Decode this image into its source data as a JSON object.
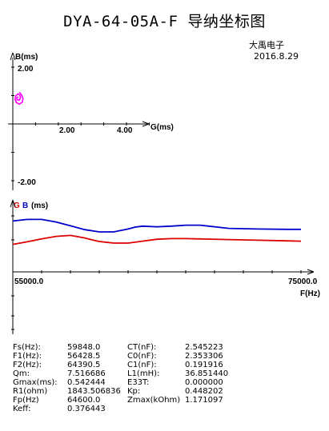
{
  "header": {
    "title": "DYA-64-05A-F 导纳坐标图",
    "company": "大禹电子",
    "date": "2016.8.29"
  },
  "chart_data": [
    {
      "type": "scatter",
      "title": "",
      "xlabel": "G(ms)",
      "ylabel": "B(ms)",
      "x_ticks": [
        "2.00",
        "4.00"
      ],
      "y_ticks": [
        "2.00",
        "-2.00"
      ],
      "xlim": [
        0,
        4.8
      ],
      "ylim": [
        -2.4,
        2.4
      ],
      "series": [
        {
          "color": "#ff00ff",
          "points": [
            [
              0.23,
              1.12
            ],
            [
              0.31,
              1.02
            ],
            [
              0.36,
              0.89
            ],
            [
              0.33,
              0.76
            ],
            [
              0.23,
              0.7
            ],
            [
              0.13,
              0.75
            ],
            [
              0.08,
              0.87
            ],
            [
              0.1,
              0.99
            ],
            [
              0.18,
              1.06
            ],
            [
              0.25,
              1.01
            ],
            [
              0.27,
              0.91
            ],
            [
              0.22,
              0.83
            ],
            [
              0.15,
              0.85
            ],
            [
              0.14,
              0.92
            ],
            [
              0.19,
              0.96
            ]
          ]
        }
      ]
    },
    {
      "type": "line",
      "title": "",
      "legend_g": "G",
      "legend_b": "B",
      "ylabel": "(ms)",
      "xlabel": "F(Hz)",
      "x_ticks": [
        "55000.0",
        "75000.0"
      ],
      "xlim": [
        55000,
        75000
      ],
      "ylim": [
        0,
        10
      ],
      "series": [
        {
          "color": "#0000cc",
          "x": [
            55000,
            56000,
            57000,
            58000,
            59000,
            60000,
            61000,
            62000,
            63000,
            63500,
            64000,
            65000,
            66000,
            67000,
            68000,
            69000,
            70000,
            72000,
            74000,
            75000
          ],
          "y": [
            7.95,
            8.2,
            8.2,
            7.8,
            7.2,
            6.6,
            6.25,
            6.25,
            6.7,
            7.0,
            7.15,
            7.05,
            7.15,
            7.3,
            7.3,
            7.05,
            6.8,
            6.7,
            6.65,
            6.65
          ]
        },
        {
          "color": "#dd0000",
          "x": [
            55000,
            56000,
            57000,
            58000,
            59000,
            60000,
            60500,
            61000,
            62000,
            63000,
            64000,
            65000,
            66000,
            67000,
            68000,
            70000,
            72000,
            74000,
            75000
          ],
          "y": [
            4.3,
            4.7,
            5.15,
            5.55,
            5.7,
            5.3,
            5.0,
            4.75,
            4.5,
            4.5,
            4.8,
            5.1,
            5.2,
            5.2,
            5.15,
            5.05,
            4.95,
            4.85,
            4.8
          ]
        }
      ]
    }
  ],
  "params": [
    [
      "Fs(Hz):",
      "59848.0",
      "CT(nF):",
      "2.545223"
    ],
    [
      "F1(Hz):",
      "56428.5",
      "C0(nF):",
      "2.353306"
    ],
    [
      "F2(Hz):",
      "64390.5",
      "C1(nF):",
      "0.191916"
    ],
    [
      "Qm:",
      "7.516686",
      "L1(mH):",
      "36.851440"
    ],
    [
      "Gmax(ms):",
      "0.542444",
      "E33T:",
      "0.000000"
    ],
    [
      "R1(ohm)",
      "1843.506836",
      "Kp:",
      "0.448202"
    ],
    [
      "Fp(Hz)",
      "64600.0",
      "Zmax(kOhm)",
      "1.171097"
    ],
    [
      "Keff:",
      "0.376443",
      "",
      ""
    ]
  ]
}
